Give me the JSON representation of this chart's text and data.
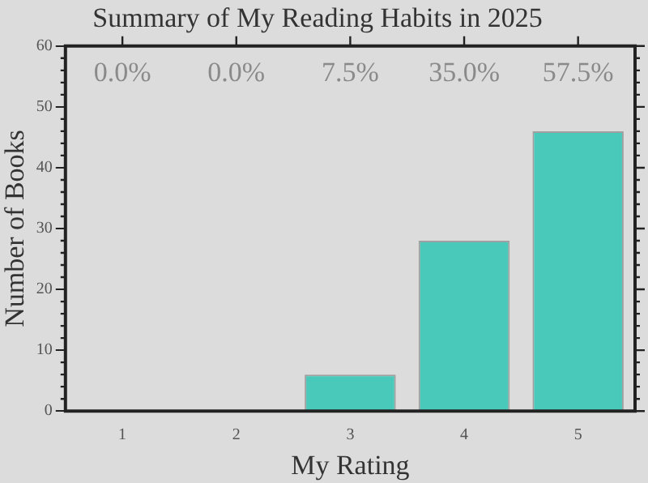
{
  "chart_data": {
    "type": "bar",
    "title": "Summary of My Reading Habits in 2025",
    "xlabel": "My Rating",
    "ylabel": "Number of Books",
    "categories": [
      "1",
      "2",
      "3",
      "4",
      "5"
    ],
    "values": [
      0,
      0,
      6,
      28,
      46
    ],
    "color": "#48c9b9",
    "annotations": [
      "0.0%",
      "0.0%",
      "7.5%",
      "35.0%",
      "57.5%"
    ],
    "ylim": [
      0,
      60
    ],
    "yticks": [
      0,
      10,
      20,
      30,
      40,
      50,
      60
    ],
    "grid": false,
    "legend": false
  }
}
